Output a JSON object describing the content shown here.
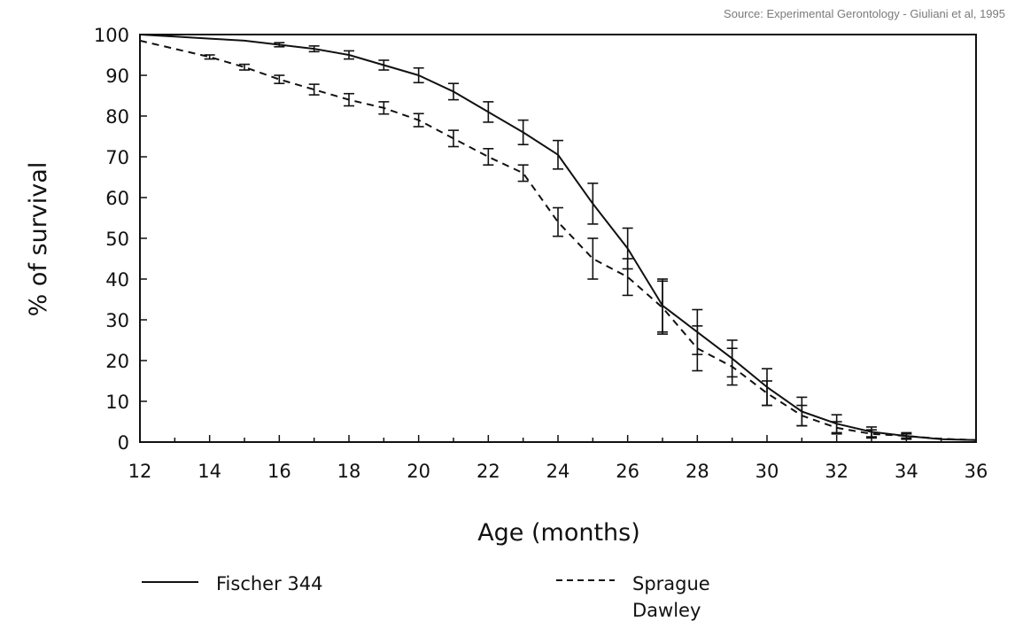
{
  "source_note": "Source: Experimental Gerontology - Giuliani et al, 1995",
  "chart_data": {
    "type": "line",
    "title": "",
    "xlabel": "Age (months)",
    "ylabel": "% of survival",
    "xlim": [
      12,
      36
    ],
    "ylim": [
      0,
      100
    ],
    "x_ticks": [
      12,
      14,
      16,
      18,
      20,
      22,
      24,
      26,
      28,
      30,
      32,
      34,
      36
    ],
    "y_ticks": [
      0,
      10,
      20,
      30,
      40,
      50,
      60,
      70,
      80,
      90,
      100
    ],
    "grid": false,
    "legend_position": "bottom",
    "series": [
      {
        "name": "Fischer 344",
        "line_style": "solid",
        "x": [
          12,
          13,
          14,
          15,
          16,
          17,
          18,
          19,
          20,
          21,
          22,
          23,
          24,
          25,
          26,
          27,
          28,
          29,
          30,
          31,
          32,
          33,
          34,
          35,
          36
        ],
        "y": [
          100,
          99.5,
          99,
          98.5,
          97.5,
          96.5,
          95,
          92.5,
          90,
          86,
          81,
          76,
          70.5,
          58.5,
          47.5,
          33.5,
          27,
          20.5,
          13.5,
          7.5,
          4.5,
          2.5,
          1.5,
          0.7,
          0.5
        ],
        "error": [
          0,
          0,
          0,
          0,
          0.5,
          0.7,
          1,
          1.2,
          1.8,
          2,
          2.5,
          3,
          3.5,
          5,
          5,
          6.5,
          5.5,
          4.5,
          4.5,
          3.5,
          2.2,
          1.2,
          0.8,
          0,
          0
        ]
      },
      {
        "name": "Sprague Dawley",
        "line_style": "dashed",
        "x": [
          12,
          13,
          14,
          15,
          16,
          17,
          18,
          19,
          20,
          21,
          22,
          23,
          24,
          25,
          26,
          27,
          28,
          29,
          30,
          31,
          32,
          33,
          34,
          35,
          36
        ],
        "y": [
          98.5,
          96.5,
          94.5,
          92,
          89,
          86.5,
          84,
          82,
          79,
          74.5,
          70,
          66,
          54,
          45,
          40.5,
          33,
          23,
          18.5,
          12,
          6.5,
          3.5,
          2,
          1.5,
          0.8,
          0.5
        ],
        "error": [
          0,
          0,
          0.5,
          0.7,
          1,
          1.3,
          1.5,
          1.5,
          1.6,
          2,
          2,
          2,
          3.5,
          5,
          4.5,
          6.5,
          5.5,
          4.5,
          3,
          2.5,
          1.5,
          1,
          0.5,
          0,
          0
        ]
      }
    ]
  }
}
